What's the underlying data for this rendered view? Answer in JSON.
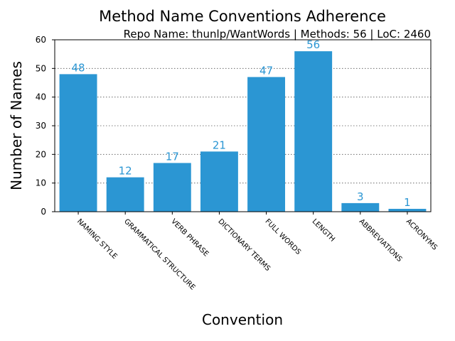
{
  "chart_data": {
    "type": "bar",
    "title": "Method Name Conventions Adherence",
    "subtitle": "Repo Name: thunlp/WantWords | Methods: 56 | LoC: 2460",
    "xlabel": "Convention",
    "ylabel": "Number of Names",
    "ylim": [
      0,
      60
    ],
    "yticks": [
      0,
      10,
      20,
      30,
      40,
      50,
      60
    ],
    "grid": true,
    "bar_color": "#2b96d3",
    "categories": [
      "NAMING STYLE",
      "GRAMMATICAL STRUCTURE",
      "VERB PHRASE",
      "DICTIONARY TERMS",
      "FULL WORDS",
      "LENGTH",
      "ABBREVIATIONS",
      "ACRONYMS"
    ],
    "values": [
      48,
      12,
      17,
      21,
      47,
      56,
      3,
      1
    ]
  }
}
